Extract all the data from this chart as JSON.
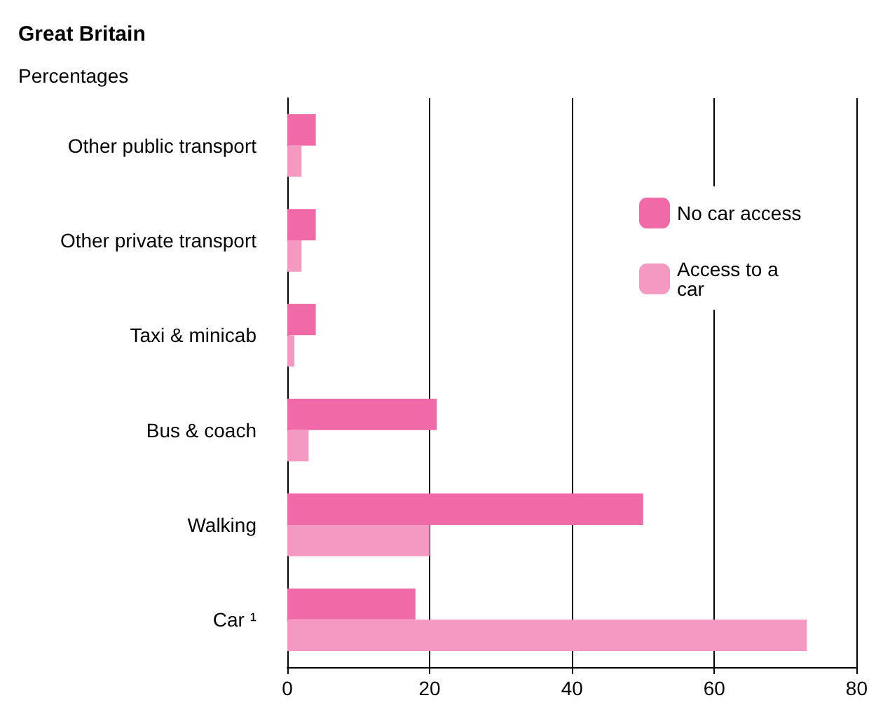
{
  "chart_data": {
    "type": "bar",
    "orientation": "horizontal",
    "title": "Great Britain",
    "subtitle": "Percentages",
    "categories": [
      "Other public transport",
      "Other private transport",
      "Taxi & minicab",
      "Bus & coach",
      "Walking",
      "Car ¹"
    ],
    "series": [
      {
        "name": "No car access",
        "color": "#f06aa8",
        "values": [
          4,
          4,
          4,
          21,
          50,
          18
        ]
      },
      {
        "name": "Access to a car",
        "color": "#f49ac2",
        "values": [
          2,
          2,
          1,
          3,
          20,
          73
        ]
      }
    ],
    "xlim": [
      0,
      80
    ],
    "xticks": [
      0,
      20,
      40,
      60,
      80
    ],
    "grid": "x",
    "legend": "top right"
  }
}
